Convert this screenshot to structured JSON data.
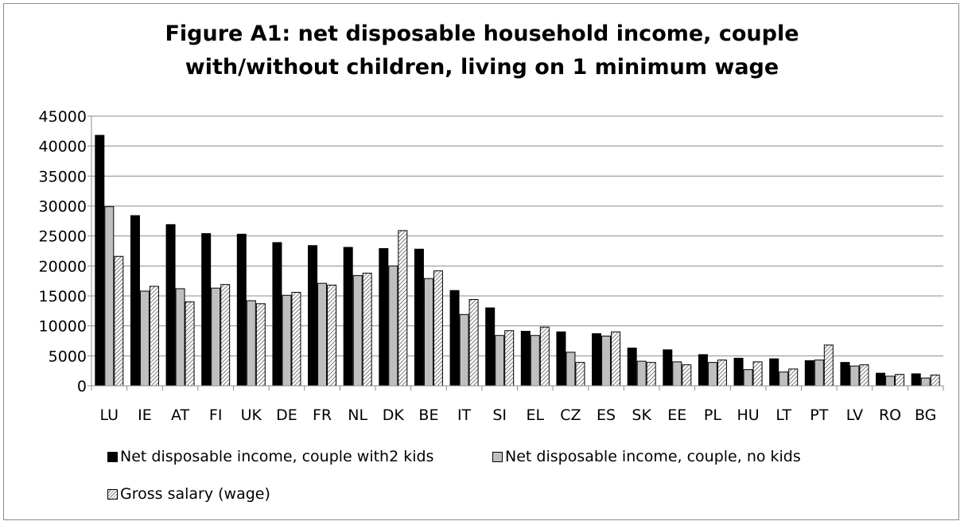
{
  "chart_data": {
    "type": "bar",
    "title_lines": [
      "Figure A1: net disposable household income, couple",
      "with/without children, living on 1 minimum wage"
    ],
    "categories": [
      "LU",
      "IE",
      "AT",
      "FI",
      "UK",
      "DE",
      "FR",
      "NL",
      "DK",
      "BE",
      "IT",
      "SI",
      "EL",
      "CZ",
      "ES",
      "SK",
      "EE",
      "PL",
      "HU",
      "LT",
      "PT",
      "LV",
      "RO",
      "BG"
    ],
    "series": [
      {
        "name": "Net disposable income, couple with2 kids",
        "color": "#000000",
        "fill": "solid",
        "values": [
          41800,
          28400,
          26900,
          25400,
          25300,
          23900,
          23400,
          23100,
          22900,
          22800,
          15900,
          13000,
          9100,
          9000,
          8700,
          6300,
          6000,
          5200,
          4600,
          4500,
          4200,
          3900,
          2100,
          2000
        ]
      },
      {
        "name": "Net disposable income, couple, no kids",
        "color": "#bfbfbf",
        "fill": "solid",
        "values": [
          29900,
          15800,
          16200,
          16300,
          14200,
          15100,
          17100,
          18400,
          20000,
          17900,
          11900,
          8400,
          8400,
          5600,
          8300,
          4100,
          4000,
          3900,
          2700,
          2300,
          4300,
          3300,
          1600,
          1300
        ]
      },
      {
        "name": "Gross salary (wage)",
        "color": "#7f7f7f",
        "fill": "hatch",
        "values": [
          21600,
          16600,
          14000,
          16900,
          13700,
          15600,
          16800,
          18800,
          25900,
          19200,
          14400,
          9200,
          9800,
          3900,
          9000,
          3900,
          3500,
          4300,
          4000,
          2800,
          6800,
          3500,
          1900,
          1800
        ]
      }
    ],
    "ylim": [
      0,
      45000
    ],
    "yticks": [
      "0",
      "5000",
      "10000",
      "15000",
      "20000",
      "25000",
      "30000",
      "35000",
      "40000",
      "45000"
    ],
    "grid": true,
    "legend_position": "bottom",
    "xlabel": "",
    "ylabel": ""
  }
}
